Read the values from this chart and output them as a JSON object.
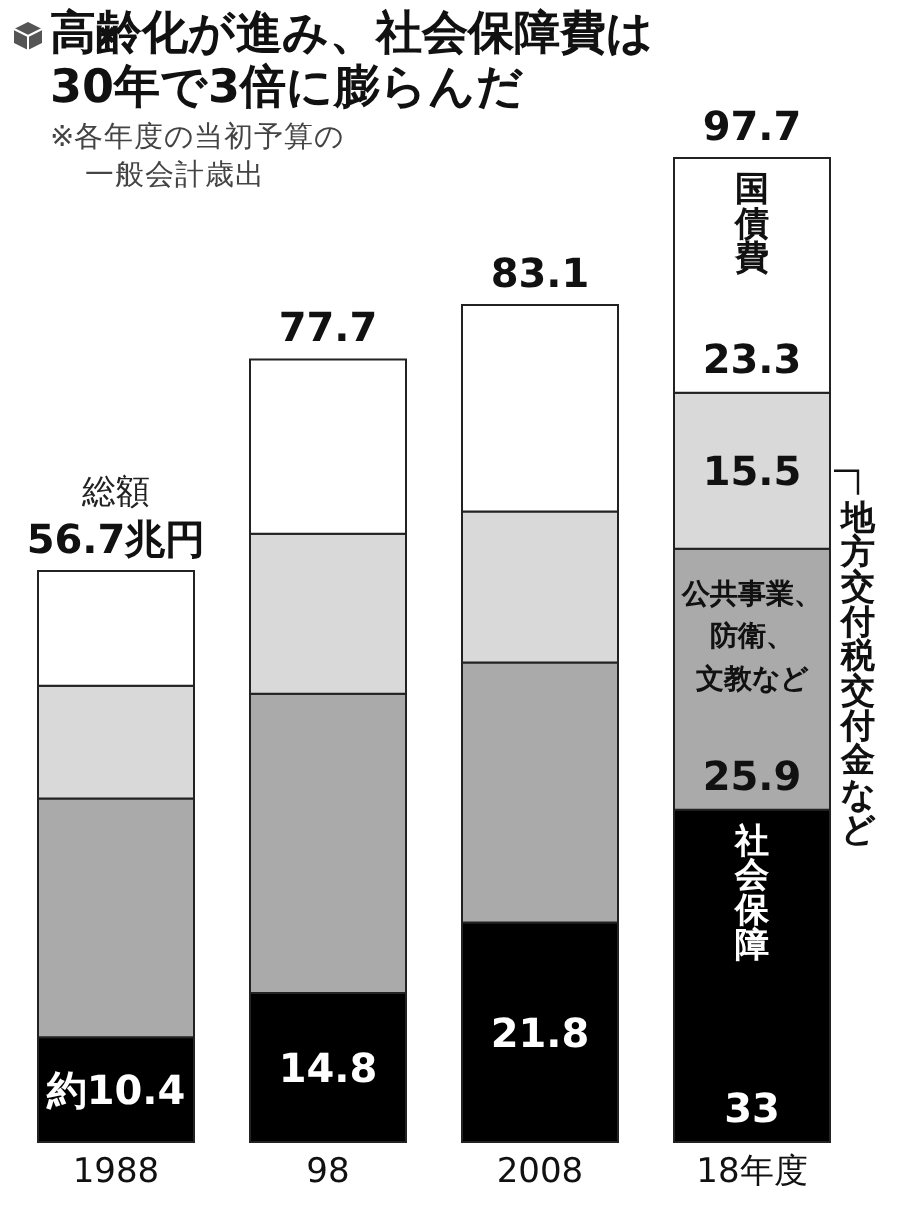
{
  "chart_data": {
    "type": "bar",
    "stacked": true,
    "title": "高齢化が進み、社会保障費は30年で3倍に膨らんだ",
    "subtitle": "※各年度の当初予算の一般会計歳出",
    "categories": [
      "1988",
      "98",
      "2008",
      "18年度"
    ],
    "series": [
      {
        "name": "社会保障",
        "color": "#000000",
        "values": [
          10.4,
          14.8,
          21.8,
          33
        ],
        "value_labels": [
          "約10.4",
          "14.8",
          "21.8",
          "33"
        ]
      },
      {
        "name": "公共事業、防衛、文教など",
        "color": "#aaaaaa",
        "values": [
          23.7,
          29.7,
          25.8,
          25.9
        ],
        "value_labels": [
          null,
          null,
          null,
          "25.9"
        ]
      },
      {
        "name": "地方交付税交付金など",
        "color": "#d9d9d9",
        "values": [
          11.2,
          15.9,
          15.0,
          15.5
        ],
        "value_labels": [
          null,
          null,
          null,
          "15.5"
        ]
      },
      {
        "name": "国債費",
        "color": "#ffffff",
        "values": [
          11.4,
          17.3,
          20.5,
          23.3
        ],
        "value_labels": [
          null,
          null,
          null,
          "23.3"
        ]
      }
    ],
    "totals": [
      "56.7兆円",
      "77.7",
      "83.1",
      "97.7"
    ],
    "annotations": [
      "総額"
    ]
  }
}
